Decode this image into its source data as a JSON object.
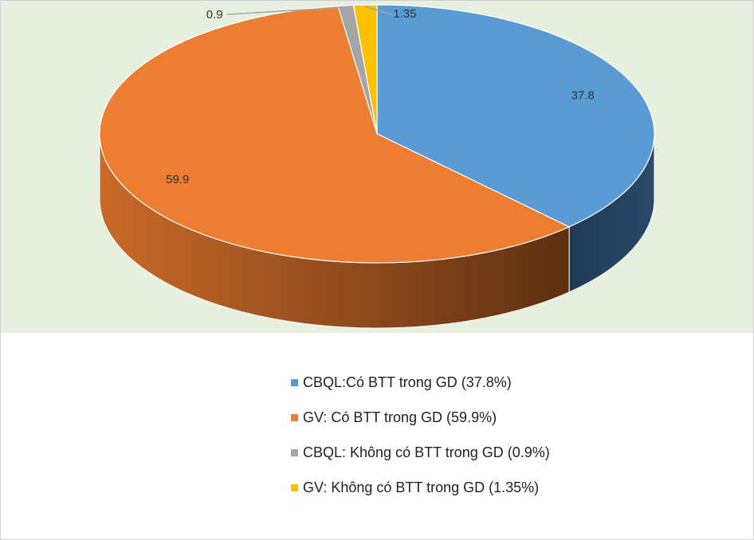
{
  "chart_data": {
    "type": "pie",
    "categories": [
      "CBQL:Có BTT trong GD",
      "GV: Có BTT trong GD",
      "CBQL: Không có BTT trong GD",
      "GV: Không có BTT trong GD"
    ],
    "values": [
      37.8,
      59.9,
      0.9,
      1.35
    ],
    "data_labels": [
      "37.8",
      "59.9",
      "0.9",
      "1.35"
    ],
    "legend": [
      "CBQL:Có BTT trong GD (37.8%)",
      "GV: Có BTT trong GD (59.9%)",
      "CBQL: Không có BTT trong GD (0.9%)",
      "GV: Không có BTT trong GD (1.35%)"
    ],
    "colors": [
      "#5b9bd5",
      "#ed7d31",
      "#a5a5a5",
      "#ffc000"
    ],
    "side_colors": [
      "#223c54",
      "#8a4418",
      "#606060",
      "#996f00"
    ],
    "style": "3d",
    "legend_position": "bottom",
    "plot_background": "#e7f0df"
  }
}
